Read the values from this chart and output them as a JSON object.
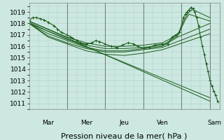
{
  "bg_color": "#cce8e0",
  "grid_color": "#aacccc",
  "line_color": "#1a5c1a",
  "marker_color": "#1a5c1a",
  "ylabel_ticks": [
    1011,
    1012,
    1013,
    1014,
    1015,
    1016,
    1017,
    1018,
    1019
  ],
  "ylim": [
    1010.5,
    1019.8
  ],
  "xlabel": "Pression niveau de la mer( hPa )",
  "day_labels": [
    "Mar",
    "Mer",
    "Jeu",
    "Ven",
    "Sam"
  ],
  "day_boundaries": [
    1,
    2,
    3,
    4,
    4.75
  ],
  "xlim": [
    0,
    5.0
  ],
  "tick_fontsize": 6.5,
  "xlabel_fontsize": 8,
  "series": [
    {
      "x": [
        0.0,
        0.1,
        0.2,
        0.3,
        0.4,
        0.5,
        0.65,
        0.75,
        0.85,
        1.0,
        1.1,
        1.15,
        1.25,
        1.35,
        1.5,
        1.65,
        1.75,
        1.85,
        2.0,
        2.15,
        2.3,
        2.45,
        2.6,
        2.75,
        2.85,
        3.0,
        3.15,
        3.3,
        3.5,
        3.65,
        3.75,
        3.85,
        3.95,
        4.05,
        4.1,
        4.15,
        4.2,
        4.25,
        4.3,
        4.35,
        4.4,
        4.45,
        4.5,
        4.55,
        4.6,
        4.65,
        4.7,
        4.75,
        4.8,
        4.85,
        4.9,
        4.95
      ],
      "y": [
        1018.3,
        1018.5,
        1018.5,
        1018.4,
        1018.3,
        1018.1,
        1017.8,
        1017.5,
        1017.2,
        1017.0,
        1016.8,
        1016.7,
        1016.5,
        1016.3,
        1016.2,
        1016.3,
        1016.5,
        1016.4,
        1016.2,
        1016.0,
        1015.9,
        1016.1,
        1016.3,
        1016.2,
        1016.0,
        1015.8,
        1015.9,
        1016.1,
        1016.2,
        1016.2,
        1016.8,
        1017.0,
        1017.2,
        1018.5,
        1018.8,
        1019.0,
        1019.2,
        1019.4,
        1019.3,
        1019.0,
        1018.5,
        1017.8,
        1016.8,
        1016.0,
        1015.3,
        1014.5,
        1013.8,
        1013.0,
        1012.5,
        1012.1,
        1011.7,
        1011.2
      ],
      "has_markers": true
    },
    {
      "x": [
        0.0,
        4.75
      ],
      "y": [
        1018.2,
        1011.2
      ],
      "has_markers": false
    },
    {
      "x": [
        0.0,
        4.75
      ],
      "y": [
        1018.0,
        1011.5
      ],
      "has_markers": false
    },
    {
      "x": [
        0.0,
        0.5,
        1.0,
        1.5,
        2.0,
        2.5,
        3.0,
        3.5,
        3.9,
        4.1,
        4.2,
        4.3,
        4.75
      ],
      "y": [
        1018.2,
        1017.5,
        1016.8,
        1016.3,
        1016.0,
        1016.0,
        1016.1,
        1016.3,
        1017.0,
        1018.5,
        1019.0,
        1019.2,
        1018.5
      ],
      "has_markers": false
    },
    {
      "x": [
        0.0,
        0.5,
        1.0,
        1.5,
        2.0,
        2.5,
        3.0,
        3.5,
        3.9,
        4.1,
        4.2,
        4.75
      ],
      "y": [
        1018.1,
        1017.3,
        1016.6,
        1016.1,
        1015.8,
        1015.8,
        1015.9,
        1016.1,
        1016.9,
        1018.3,
        1018.8,
        1018.2
      ],
      "has_markers": false
    },
    {
      "x": [
        0.0,
        0.5,
        1.0,
        1.5,
        2.0,
        2.5,
        3.0,
        3.5,
        3.9,
        4.75
      ],
      "y": [
        1018.0,
        1017.1,
        1016.5,
        1015.9,
        1015.6,
        1015.6,
        1015.8,
        1016.0,
        1016.8,
        1018.0
      ],
      "has_markers": false
    },
    {
      "x": [
        0.0,
        0.5,
        1.0,
        1.5,
        2.0,
        2.5,
        3.0,
        3.5,
        4.75
      ],
      "y": [
        1018.0,
        1016.9,
        1016.3,
        1015.8,
        1015.5,
        1015.5,
        1015.7,
        1015.9,
        1017.5
      ],
      "has_markers": false
    },
    {
      "x": [
        0.0,
        0.5,
        1.0,
        1.5,
        2.0,
        2.5,
        3.0,
        3.5,
        4.75
      ],
      "y": [
        1018.0,
        1016.8,
        1016.2,
        1015.6,
        1015.3,
        1015.2,
        1015.4,
        1015.7,
        1017.1
      ],
      "has_markers": false
    }
  ]
}
